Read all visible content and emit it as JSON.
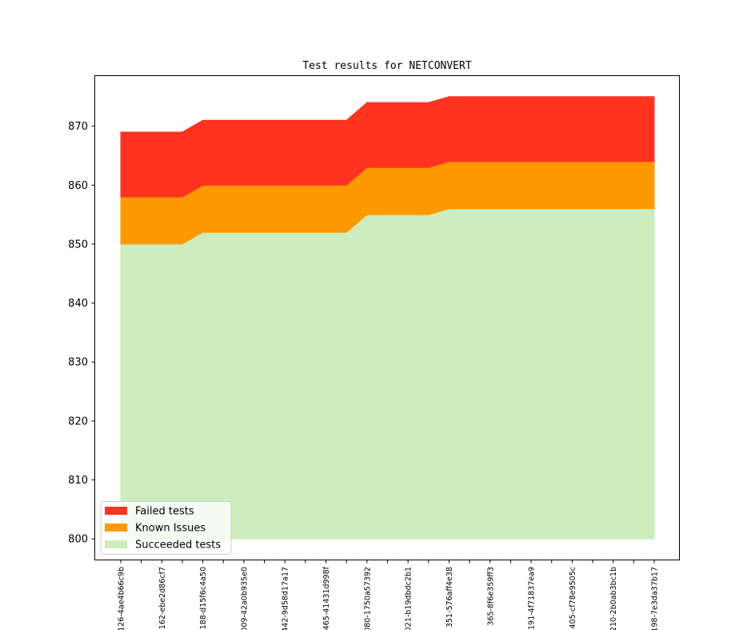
{
  "chart_data": {
    "type": "area",
    "title": "Test results for NETCONVERT",
    "xlabel": "",
    "ylabel": "",
    "ylim": [
      796.5,
      878.5
    ],
    "yticks": [
      800,
      810,
      820,
      830,
      840,
      850,
      860,
      870
    ],
    "categories": [
      "126-4ae4b66c9b",
      "",
      "162-ebe2d86cf7",
      "",
      "188-d15f6c4a50",
      "",
      "009-42a0b935e0",
      "",
      "442-9d58d17a17",
      "",
      "465-41431d998f",
      "",
      "080-1750a57392",
      "",
      "021-b19dbdc2b1",
      "",
      "351-576aff4e38",
      "",
      "365-8f6e359ff3",
      "",
      "191-4f71837ea9",
      "",
      "405-cf78e9505c",
      "",
      "210-2b0ab3bc1b",
      "",
      "198-7e3da37b17"
    ],
    "base": 800,
    "series": [
      {
        "name": "Succeeded tests",
        "color": "#ceedbe",
        "values": [
          850,
          850,
          850,
          850,
          852,
          852,
          852,
          852,
          852,
          852,
          852,
          852,
          855,
          855,
          855,
          855,
          856,
          856,
          856,
          856,
          856,
          856,
          856,
          856,
          856,
          856,
          856
        ]
      },
      {
        "name": "Known Issues",
        "color": "#ff9900",
        "values": [
          8,
          8,
          8,
          8,
          8,
          8,
          8,
          8,
          8,
          8,
          8,
          8,
          8,
          8,
          8,
          8,
          8,
          8,
          8,
          8,
          8,
          8,
          8,
          8,
          8,
          8,
          8
        ]
      },
      {
        "name": "Failed tests",
        "color": "#ff331f",
        "values": [
          11,
          11,
          11,
          11,
          11,
          11,
          11,
          11,
          11,
          11,
          11,
          11,
          11,
          11,
          11,
          11,
          11,
          11,
          11,
          11,
          11,
          11,
          11,
          11,
          11,
          11,
          11
        ]
      }
    ],
    "legend": {
      "position": "lower-left",
      "entries": [
        "Failed tests",
        "Known Issues",
        "Succeeded tests"
      ]
    },
    "grid": false
  }
}
